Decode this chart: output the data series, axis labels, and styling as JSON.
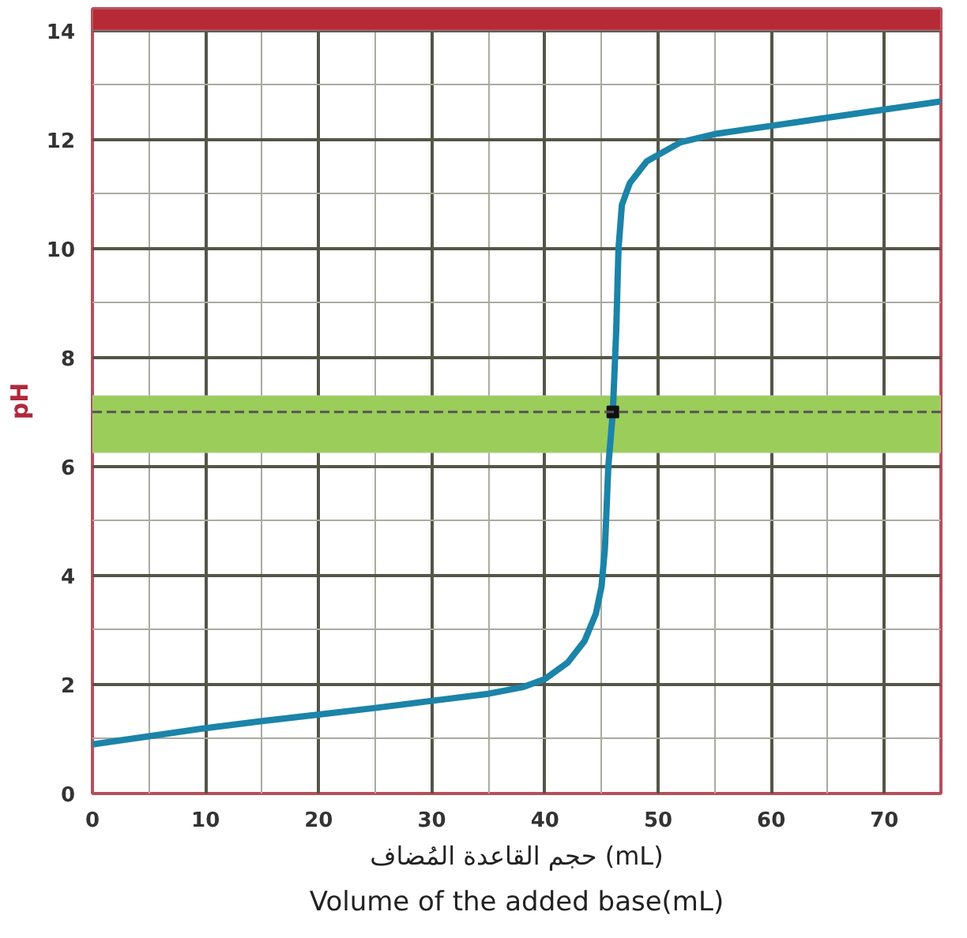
{
  "chart_data": {
    "type": "line",
    "ylabel": "pH",
    "xlabel": "حجم القاعدة المُضاف (mL)\nVolume of the added base(mL)",
    "xlim": [
      0,
      75
    ],
    "ylim": [
      0,
      14.4
    ],
    "xticks": [
      0,
      10,
      20,
      30,
      40,
      50,
      60,
      70
    ],
    "yticks": [
      0,
      2,
      4,
      6,
      8,
      10,
      12,
      14
    ],
    "grid": true,
    "series": [
      {
        "color": "#1b84a8",
        "x": [
          0,
          5,
          10,
          15,
          20,
          25,
          30,
          35,
          38,
          40,
          42,
          43.5,
          44.5,
          45,
          45.3,
          45.6,
          46,
          46.3,
          46.5,
          46.8,
          47.5,
          49,
          52,
          55,
          60,
          65,
          70,
          75
        ],
        "values": [
          0.9,
          1.05,
          1.2,
          1.33,
          1.45,
          1.57,
          1.7,
          1.83,
          1.95,
          2.1,
          2.4,
          2.8,
          3.3,
          3.8,
          4.5,
          6,
          7,
          8.5,
          10,
          10.8,
          11.2,
          11.6,
          11.95,
          12.1,
          12.25,
          12.4,
          12.55,
          12.7
        ]
      },
      {
        "type": "scatter",
        "color": "#111111",
        "x": [
          46
        ],
        "values": [
          7
        ]
      }
    ],
    "ref_lines": [
      {
        "axis": "y",
        "value": 7,
        "color": "#555555",
        "line_style": "dashed"
      }
    ],
    "bands": [
      {
        "axis": "y",
        "from": 6.25,
        "to": 7.3,
        "color": "#9acd5a"
      },
      {
        "axis": "y",
        "from": 14,
        "to": 14.4,
        "color": "#b52a36"
      }
    ]
  }
}
